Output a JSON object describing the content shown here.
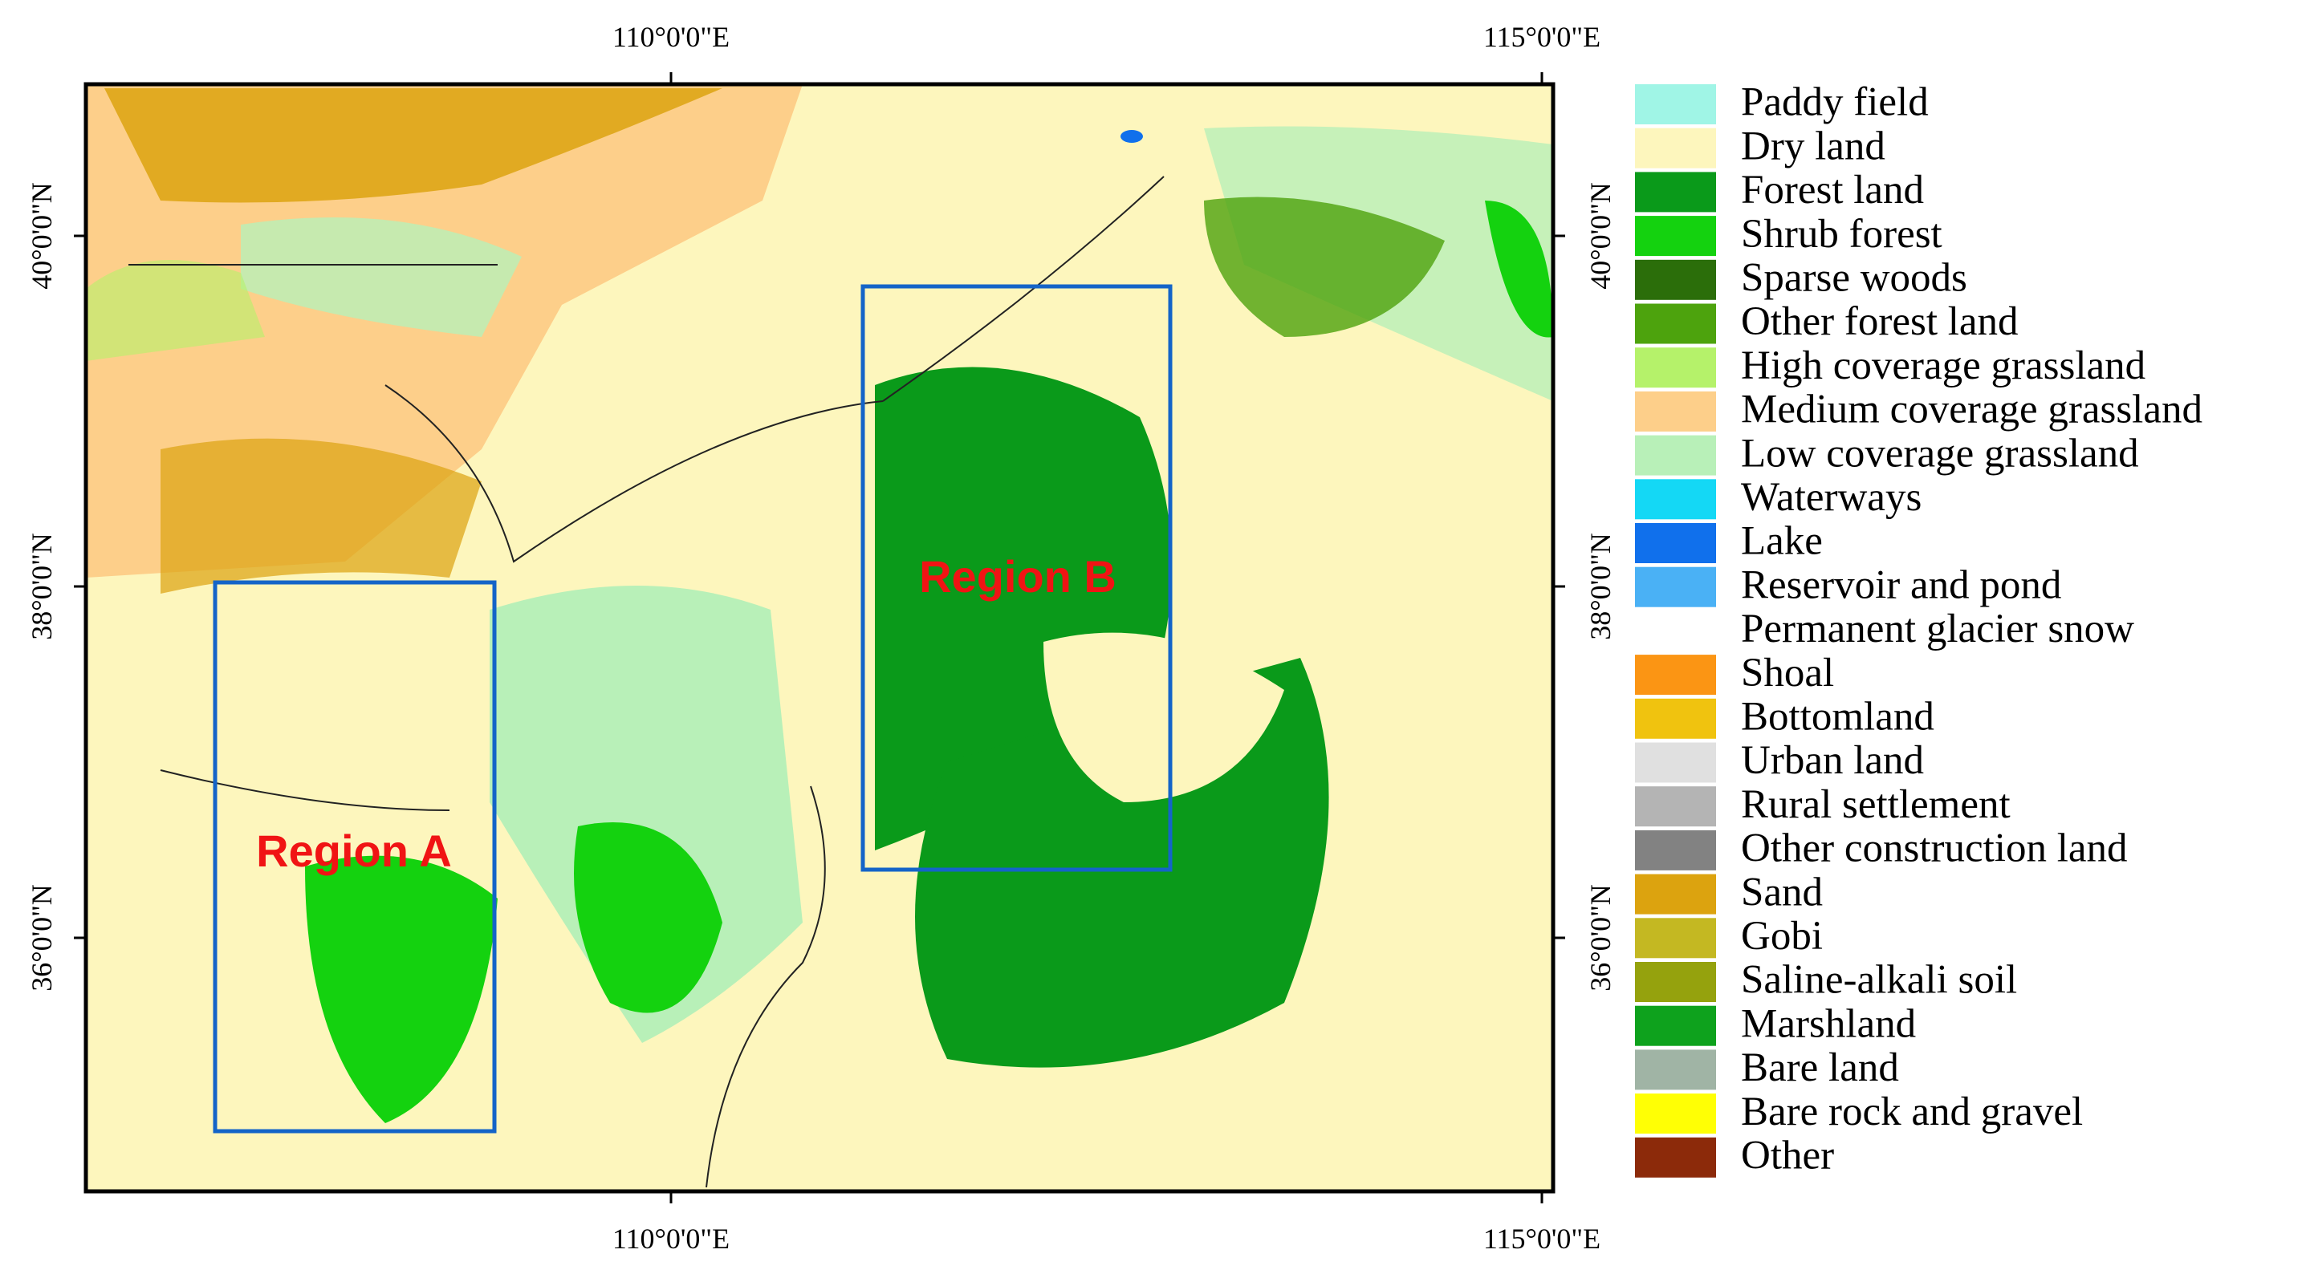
{
  "map": {
    "x_labels_top": [
      "110°0'0\"E",
      "115°0'0\"E"
    ],
    "x_labels_bottom": [
      "110°0'0\"E",
      "115°0'0\"E"
    ],
    "y_labels_left": [
      "40°0'0\"N",
      "38°0'0\"N",
      "36°0'0\"N"
    ],
    "y_labels_right": [
      "40°0'0\"N",
      "38°0'0\"N",
      "36°0'0\"N"
    ],
    "regions": [
      {
        "label": "Region A"
      },
      {
        "label": "Region B"
      }
    ],
    "legend": [
      {
        "label": "Paddy field",
        "color": "#a0f5e6"
      },
      {
        "label": "Dry land",
        "color": "#fdf6bd"
      },
      {
        "label": "Forest land",
        "color": "#0a9a1a"
      },
      {
        "label": "Shrub forest",
        "color": "#14d20f"
      },
      {
        "label": "Sparse woods",
        "color": "#2b6e0a"
      },
      {
        "label": "Other forest land",
        "color": "#4da30d"
      },
      {
        "label": "High coverage grassland",
        "color": "#b5f26a"
      },
      {
        "label": "Medium coverage grassland",
        "color": "#fdcf8a"
      },
      {
        "label": "Low coverage grassland",
        "color": "#b8f0b8"
      },
      {
        "label": "Waterways",
        "color": "#14d8f5"
      },
      {
        "label": "Lake",
        "color": "#1070ec"
      },
      {
        "label": "Reservoir and pond",
        "color": "#4ab1f5"
      },
      {
        "label": "Permanent glacier snow",
        "color": "#ffffff"
      },
      {
        "label": "Shoal",
        "color": "#fb9514"
      },
      {
        "label": "Bottomland",
        "color": "#f0c30f"
      },
      {
        "label": "Urban land",
        "color": "#e0e0e0"
      },
      {
        "label": "Rural settlement",
        "color": "#b4b4b4"
      },
      {
        "label": "Other construction land",
        "color": "#828282"
      },
      {
        "label": "Sand",
        "color": "#dca30f"
      },
      {
        "label": "Gobi",
        "color": "#c4b822"
      },
      {
        "label": "Saline-alkali soil",
        "color": "#95a20d"
      },
      {
        "label": "Marshland",
        "color": "#0ea21d"
      },
      {
        "label": "Bare land",
        "color": "#a0b4a5"
      },
      {
        "label": "Bare rock and gravel",
        "color": "#ffff05"
      },
      {
        "label": "Other",
        "color": "#8c2a0a"
      }
    ]
  }
}
